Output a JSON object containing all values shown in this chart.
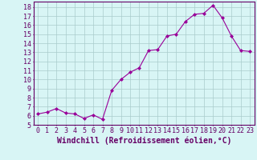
{
  "x": [
    0,
    1,
    2,
    3,
    4,
    5,
    6,
    7,
    8,
    9,
    10,
    11,
    12,
    13,
    14,
    15,
    16,
    17,
    18,
    19,
    20,
    21,
    22,
    23
  ],
  "y": [
    6.2,
    6.4,
    6.8,
    6.3,
    6.2,
    5.7,
    6.1,
    5.6,
    8.8,
    10.0,
    10.8,
    11.3,
    13.2,
    13.3,
    14.8,
    15.0,
    16.4,
    17.2,
    17.3,
    18.2,
    16.8,
    14.8,
    13.2,
    13.1
  ],
  "line_color": "#990099",
  "marker": "D",
  "marker_size": 2,
  "bg_color": "#d8f5f5",
  "grid_color": "#aacccc",
  "xlabel": "Windchill (Refroidissement éolien,°C)",
  "xlabel_color": "#660066",
  "xlabel_fontsize": 7,
  "ylabel_ticks": [
    5,
    6,
    7,
    8,
    9,
    10,
    11,
    12,
    13,
    14,
    15,
    16,
    17,
    18
  ],
  "xlim": [
    -0.5,
    23.5
  ],
  "ylim": [
    5.0,
    18.6
  ],
  "tick_fontsize": 6,
  "tick_color": "#660066",
  "spine_color": "#660066"
}
